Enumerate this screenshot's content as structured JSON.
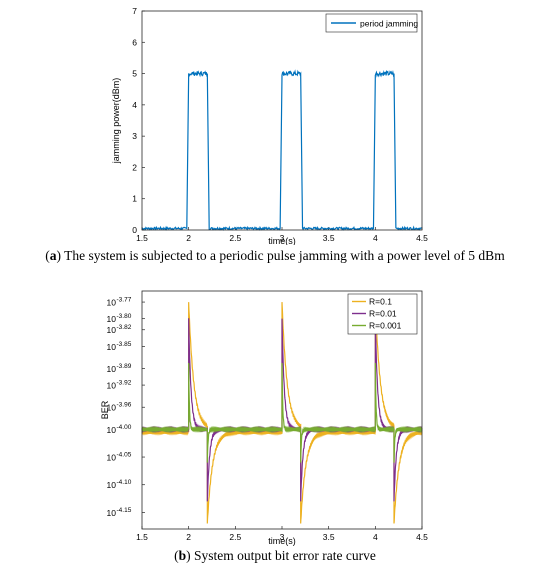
{
  "captions": {
    "a_letter": "a",
    "a_text": " The system is subjected to a periodic pulse jamming with a power level of 5 dBm",
    "b_letter": "b",
    "b_text": " System output bit error rate curve"
  },
  "chart_data": [
    {
      "type": "line",
      "xlabel": "time(s)",
      "ylabel": "jamming power(dBm)",
      "xlim": [
        1.5,
        4.5
      ],
      "ylim": [
        0,
        7
      ],
      "xticks": [
        "1.5",
        "2",
        "2.5",
        "3",
        "3.5",
        "4",
        "4.5"
      ],
      "yticks": [
        "0",
        "1",
        "2",
        "3",
        "4",
        "5",
        "6",
        "7"
      ],
      "grid": false,
      "legend_position": "top-right",
      "series": [
        {
          "name": "period jamming",
          "color": "#0072BD",
          "x": [
            1.5,
            1.98,
            2.0,
            2.2,
            2.22,
            2.98,
            3.0,
            3.2,
            3.22,
            3.98,
            4.0,
            4.2,
            4.22,
            4.5
          ],
          "y": [
            0.05,
            0.05,
            5.0,
            5.0,
            0.05,
            0.05,
            5.0,
            5.0,
            0.05,
            0.05,
            5.0,
            5.0,
            0.05,
            0.05
          ]
        }
      ]
    },
    {
      "type": "line",
      "xlabel": "time(s)",
      "ylabel": "BER",
      "xlim": [
        1.5,
        4.5
      ],
      "ylim": [
        -4.18,
        -3.75
      ],
      "xticks": [
        "1.5",
        "2",
        "2.5",
        "3",
        "3.5",
        "4",
        "4.5"
      ],
      "ytick_exponents": [
        "-3.77",
        "-3.80",
        "-3.82",
        "-3.85",
        "-3.89",
        "-3.92",
        "-3.96",
        "-4.00",
        "-4.05",
        "-4.10",
        "-4.15"
      ],
      "ytick_base": "10",
      "grid": false,
      "legend_position": "top-right",
      "baseline": -4.0,
      "pulse_starts": [
        2.0,
        3.0,
        4.0
      ],
      "pulse_width": 0.2,
      "series": [
        {
          "name": "R=0.1",
          "color": "#EDB120",
          "peak": -3.77,
          "trough": -4.17,
          "decay": 0.055,
          "pre_offset": -0.005
        },
        {
          "name": "R=0.01",
          "color": "#7E2F8E",
          "peak": -3.8,
          "trough": -4.13,
          "decay": 0.025,
          "pre_offset": 0.0
        },
        {
          "name": "R=0.001",
          "color": "#77AC30",
          "peak": -3.88,
          "trough": -4.06,
          "decay": 0.008,
          "pre_offset": 0.0
        }
      ]
    }
  ]
}
